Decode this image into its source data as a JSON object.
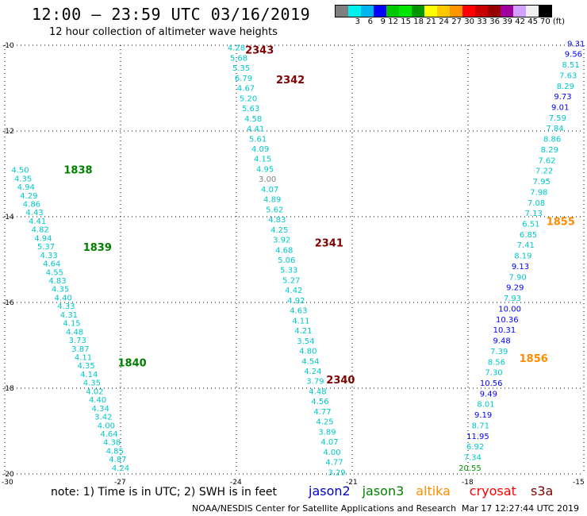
{
  "header": {
    "title": "12:00 – 23:59 UTC 03/16/2019",
    "subtitle": "12 hour collection of altimeter wave heights"
  },
  "colorbar": {
    "colors": [
      "#7f7f7f",
      "#00f0f0",
      "#00b4f0",
      "#0000ff",
      "#00c800",
      "#00e600",
      "#009600",
      "#ffff00",
      "#ffc800",
      "#ff9600",
      "#ff0000",
      "#c80000",
      "#960000",
      "#a000a0",
      "#d2a0ff",
      "#f0f0f0",
      "#000000"
    ],
    "labels": [
      "",
      "3",
      "6",
      "9",
      "12",
      "15",
      "18",
      "21",
      "24",
      "27",
      "30",
      "33",
      "36",
      "39",
      "42",
      "45",
      "70 (ft)"
    ]
  },
  "map": {
    "lat_ticks": [
      "-10",
      "-12",
      "-14",
      "-16",
      "-18",
      "-20"
    ],
    "lon_ticks": [
      "-30",
      "-27",
      "-24",
      "-21",
      "-18",
      "-15"
    ]
  },
  "passes": [
    {
      "label": "2343",
      "color": "#800000",
      "lon": -23.4,
      "lat": -10.1
    },
    {
      "label": "2342",
      "color": "#800000",
      "lon": -22.6,
      "lat": -10.8
    },
    {
      "label": "2341",
      "color": "#800000",
      "lon": -21.6,
      "lat": -14.6
    },
    {
      "label": "2340",
      "color": "#800000",
      "lon": -21.3,
      "lat": -17.8
    },
    {
      "label": "1838",
      "color": "#008000",
      "lon": -28.1,
      "lat": -12.9
    },
    {
      "label": "1839",
      "color": "#008000",
      "lon": -27.6,
      "lat": -14.7
    },
    {
      "label": "1840",
      "color": "#008000",
      "lon": -26.7,
      "lat": -17.4
    },
    {
      "label": "1855",
      "color": "#ff8c00",
      "lon": -15.6,
      "lat": -14.1
    },
    {
      "label": "1856",
      "color": "#ff8c00",
      "lon": -16.3,
      "lat": -17.3
    }
  ],
  "tracks": [
    {
      "name": "s3a-track",
      "lon_start": -24.0,
      "lat_start": -10.05,
      "lon_end": -21.4,
      "lat_end": -19.95,
      "values": [
        {
          "v": "4.28",
          "c": "#00c8c8"
        },
        {
          "v": "5.68",
          "c": "#00c8c8"
        },
        {
          "v": "5.35",
          "c": "#00c8c8"
        },
        {
          "v": "6.79",
          "c": "#00c8c8"
        },
        {
          "v": "4.67",
          "c": "#00c8c8"
        },
        {
          "v": "5.20",
          "c": "#00c8c8"
        },
        {
          "v": "5.63",
          "c": "#00c8c8"
        },
        {
          "v": "4.58",
          "c": "#00c8c8"
        },
        {
          "v": "4.41",
          "c": "#00c8c8"
        },
        {
          "v": "5.61",
          "c": "#00c8c8"
        },
        {
          "v": "4.09",
          "c": "#00c8c8"
        },
        {
          "v": "4.15",
          "c": "#00c8c8"
        },
        {
          "v": "4.95",
          "c": "#00c8c8"
        },
        {
          "v": "3.00",
          "c": "#7f7f7f"
        },
        {
          "v": "4.07",
          "c": "#00c8c8"
        },
        {
          "v": "4.89",
          "c": "#00c8c8"
        },
        {
          "v": "5.62",
          "c": "#00c8c8"
        },
        {
          "v": "4.83",
          "c": "#00c8c8"
        },
        {
          "v": "4.25",
          "c": "#00c8c8"
        },
        {
          "v": "3.92",
          "c": "#00c8c8"
        },
        {
          "v": "4.68",
          "c": "#00c8c8"
        },
        {
          "v": "5.06",
          "c": "#00c8c8"
        },
        {
          "v": "5.33",
          "c": "#00c8c8"
        },
        {
          "v": "5.27",
          "c": "#00c8c8"
        },
        {
          "v": "4.42",
          "c": "#00c8c8"
        },
        {
          "v": "4.92",
          "c": "#00c8c8"
        },
        {
          "v": "4.63",
          "c": "#00c8c8"
        },
        {
          "v": "4.11",
          "c": "#00c8c8"
        },
        {
          "v": "4.21",
          "c": "#00c8c8"
        },
        {
          "v": "3.54",
          "c": "#00c8c8"
        },
        {
          "v": "4.80",
          "c": "#00c8c8"
        },
        {
          "v": "4.54",
          "c": "#00c8c8"
        },
        {
          "v": "4.24",
          "c": "#00c8c8"
        },
        {
          "v": "3.79",
          "c": "#00c8c8"
        },
        {
          "v": "4.48",
          "c": "#00c8c8"
        },
        {
          "v": "4.56",
          "c": "#00c8c8"
        },
        {
          "v": "4.77",
          "c": "#00c8c8"
        },
        {
          "v": "4.25",
          "c": "#00c8c8"
        },
        {
          "v": "3.89",
          "c": "#00c8c8"
        },
        {
          "v": "4.07",
          "c": "#00c8c8"
        },
        {
          "v": "4.00",
          "c": "#00c8c8"
        },
        {
          "v": "4.77",
          "c": "#00c8c8"
        },
        {
          "v": "3.29",
          "c": "#00c8c8"
        }
      ]
    },
    {
      "name": "jason3-track",
      "lon_start": -29.6,
      "lat_start": -12.9,
      "lon_end": -27.0,
      "lat_end": -19.85,
      "values": [
        {
          "v": "4.50",
          "c": "#00c8c8"
        },
        {
          "v": "4.35",
          "c": "#00c8c8"
        },
        {
          "v": "4.94",
          "c": "#00c8c8"
        },
        {
          "v": "4.29",
          "c": "#00c8c8"
        },
        {
          "v": "4.86",
          "c": "#00c8c8"
        },
        {
          "v": "4.43",
          "c": "#00c8c8"
        },
        {
          "v": "4.41",
          "c": "#00c8c8"
        },
        {
          "v": "4.82",
          "c": "#00c8c8"
        },
        {
          "v": "4.94",
          "c": "#00c8c8"
        },
        {
          "v": "5.37",
          "c": "#00c8c8"
        },
        {
          "v": "4.33",
          "c": "#00c8c8"
        },
        {
          "v": "4.64",
          "c": "#00c8c8"
        },
        {
          "v": "4.55",
          "c": "#00c8c8"
        },
        {
          "v": "4.83",
          "c": "#00c8c8"
        },
        {
          "v": "4.35",
          "c": "#00c8c8"
        },
        {
          "v": "4.40",
          "c": "#00c8c8"
        },
        {
          "v": "4.33",
          "c": "#00c8c8"
        },
        {
          "v": "4.31",
          "c": "#00c8c8"
        },
        {
          "v": "4.15",
          "c": "#00c8c8"
        },
        {
          "v": "4.48",
          "c": "#00c8c8"
        },
        {
          "v": "3.73",
          "c": "#00c8c8"
        },
        {
          "v": "3.87",
          "c": "#00c8c8"
        },
        {
          "v": "4.11",
          "c": "#00c8c8"
        },
        {
          "v": "4.35",
          "c": "#00c8c8"
        },
        {
          "v": "4.14",
          "c": "#00c8c8"
        },
        {
          "v": "4.35",
          "c": "#00c8c8"
        },
        {
          "v": "4.02",
          "c": "#00c8c8"
        },
        {
          "v": "4.40",
          "c": "#00c8c8"
        },
        {
          "v": "4.34",
          "c": "#00c8c8"
        },
        {
          "v": "3.42",
          "c": "#00c8c8"
        },
        {
          "v": "4.00",
          "c": "#00c8c8"
        },
        {
          "v": "4.64",
          "c": "#00c8c8"
        },
        {
          "v": "4.38",
          "c": "#00c8c8"
        },
        {
          "v": "4.85",
          "c": "#00c8c8"
        },
        {
          "v": "4.87",
          "c": "#00c8c8"
        },
        {
          "v": "4.24",
          "c": "#00c8c8"
        }
      ]
    },
    {
      "name": "altika-track",
      "lon_start": -15.2,
      "lat_start": -9.95,
      "lon_end": -17.95,
      "lat_end": -19.85,
      "values": [
        {
          "v": "9.31",
          "c": "#0000ff"
        },
        {
          "v": "9.56",
          "c": "#0000ff"
        },
        {
          "v": "8.51",
          "c": "#00c8c8"
        },
        {
          "v": "7.63",
          "c": "#00c8c8"
        },
        {
          "v": "8.29",
          "c": "#00c8c8"
        },
        {
          "v": "9.73",
          "c": "#0000ff"
        },
        {
          "v": "9.01",
          "c": "#0000ff"
        },
        {
          "v": "7.59",
          "c": "#00c8c8"
        },
        {
          "v": "7.84",
          "c": "#00c8c8"
        },
        {
          "v": "8.86",
          "c": "#00c8c8"
        },
        {
          "v": "8.29",
          "c": "#00c8c8"
        },
        {
          "v": "7.62",
          "c": "#00c8c8"
        },
        {
          "v": "7.22",
          "c": "#00c8c8"
        },
        {
          "v": "7.95",
          "c": "#00c8c8"
        },
        {
          "v": "7.98",
          "c": "#00c8c8"
        },
        {
          "v": "7.08",
          "c": "#00c8c8"
        },
        {
          "v": "7.13",
          "c": "#00c8c8"
        },
        {
          "v": "6.51",
          "c": "#00c8c8"
        },
        {
          "v": "6.85",
          "c": "#00c8c8"
        },
        {
          "v": "7.41",
          "c": "#00c8c8"
        },
        {
          "v": "8.19",
          "c": "#00c8c8"
        },
        {
          "v": "9.13",
          "c": "#0000ff"
        },
        {
          "v": "7.90",
          "c": "#00c8c8"
        },
        {
          "v": "9.29",
          "c": "#0000ff"
        },
        {
          "v": "7.93",
          "c": "#00c8c8"
        },
        {
          "v": "10.00",
          "c": "#0000ff"
        },
        {
          "v": "10.36",
          "c": "#0000ff"
        },
        {
          "v": "10.31",
          "c": "#0000ff"
        },
        {
          "v": "9.48",
          "c": "#0000ff"
        },
        {
          "v": "7.39",
          "c": "#00c8c8"
        },
        {
          "v": "8.56",
          "c": "#00c8c8"
        },
        {
          "v": "7.30",
          "c": "#00c8c8"
        },
        {
          "v": "10.56",
          "c": "#0000ff"
        },
        {
          "v": "9.49",
          "c": "#0000ff"
        },
        {
          "v": "8.01",
          "c": "#00c8c8"
        },
        {
          "v": "9.19",
          "c": "#0000ff"
        },
        {
          "v": "8.71",
          "c": "#00c8c8"
        },
        {
          "v": "11.95",
          "c": "#0000ff"
        },
        {
          "v": "6.92",
          "c": "#00c8c8"
        },
        {
          "v": "7.34",
          "c": "#00c8c8"
        },
        {
          "v": "20.55",
          "c": "#009600"
        }
      ]
    }
  ],
  "footer": {
    "note": "note:  1) Time is in UTC;  2) SWH is in feet",
    "legend": [
      {
        "name": "jason2",
        "color": "#0000cc"
      },
      {
        "name": "jason3",
        "color": "#008000"
      },
      {
        "name": "altika",
        "color": "#ff8c00"
      },
      {
        "name": "cryosat",
        "color": "#ff0000"
      },
      {
        "name": "s3a",
        "color": "#800000"
      }
    ],
    "credit": "NOAA/NESDIS Center for Satellite Applications and Research",
    "timestamp": "Mar 17 12:27:44 UTC 2019"
  }
}
